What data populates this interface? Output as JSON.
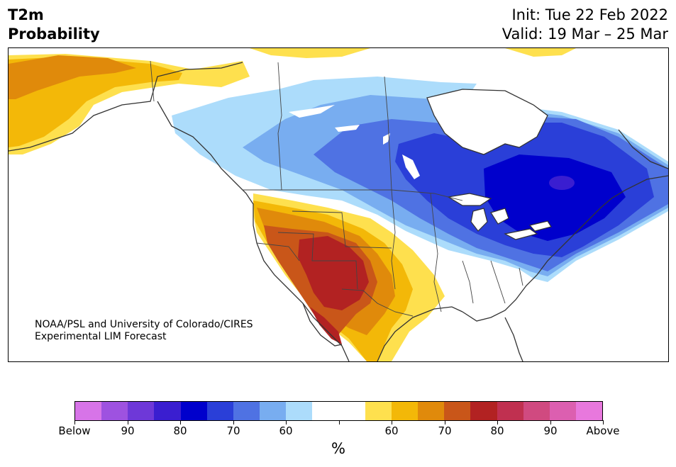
{
  "header": {
    "title_line1": "T2m",
    "title_line2": "Probability",
    "init": "Init: Tue 22 Feb 2022",
    "valid": "Valid: 19 Mar – 25 Mar"
  },
  "map": {
    "credit_line1": "NOAA/PSL and University of Colorado/CIRES",
    "credit_line2": "Experimental LIM Forecast"
  },
  "colorbar": {
    "unit": "%",
    "colors": [
      "#d774e8",
      "#9e52e0",
      "#6e38d8",
      "#3a1ed0",
      "#0000cc",
      "#2a3fd8",
      "#4f72e3",
      "#78adf0",
      "#acdcfb",
      "#ffffff",
      "#ffffff",
      "#fee04e",
      "#f3b808",
      "#e08a0b",
      "#c95619",
      "#b22222",
      "#c03050",
      "#d04a80",
      "#dc5fb0",
      "#e878dd"
    ],
    "tick_labels": [
      "Below",
      "90",
      "80",
      "70",
      "60",
      "",
      "60",
      "70",
      "80",
      "90",
      "Above"
    ]
  }
}
